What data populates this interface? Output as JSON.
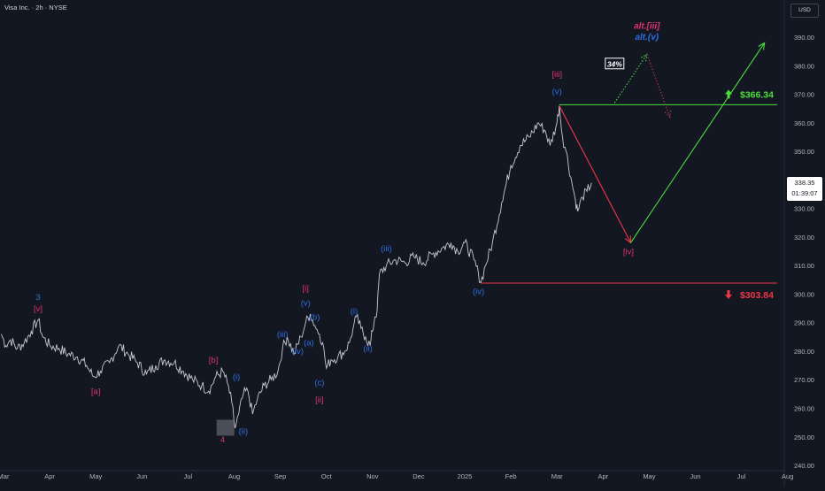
{
  "header": {
    "symbol": "Visa Inc. · 2h · NYSE",
    "currency": "USD"
  },
  "price_tag": {
    "price": "338.35",
    "countdown": "01:39:07"
  },
  "chart_data": {
    "type": "line",
    "title": "Visa Inc. · 2h · NYSE",
    "xlabel": "",
    "ylabel": "",
    "ylim": [
      240,
      400
    ],
    "y_ticks": [
      240,
      250,
      260,
      270,
      280,
      290,
      300,
      310,
      320,
      330,
      340,
      350,
      360,
      370,
      380,
      390
    ],
    "y_tick_labels": [
      "240.00",
      "250.00",
      "260.00",
      "270.00",
      "280.00",
      "290.00",
      "300.00",
      "310.00",
      "320.00",
      "330.00",
      "340.00",
      "350.00",
      "360.00",
      "370.00",
      "380.00",
      "390.00"
    ],
    "x_axis_labels": [
      "Mar",
      "Apr",
      "May",
      "Jun",
      "Jul",
      "Aug",
      "Sep",
      "Oct",
      "Nov",
      "Dec",
      "2025",
      "Feb",
      "Mar",
      "Apr",
      "May",
      "Jun",
      "Jul",
      "Aug"
    ],
    "x_axis_months": [
      0,
      1,
      2,
      3,
      4,
      5,
      6,
      7,
      8,
      9,
      10,
      11,
      12,
      13,
      14,
      15,
      16,
      17
    ],
    "grid": false,
    "price_series": [
      [
        -0.05,
        286
      ],
      [
        0.05,
        282
      ],
      [
        0.15,
        284
      ],
      [
        0.3,
        281
      ],
      [
        0.45,
        283
      ],
      [
        0.6,
        287
      ],
      [
        0.75,
        291
      ],
      [
        0.85,
        285
      ],
      [
        1.0,
        282
      ],
      [
        1.2,
        281
      ],
      [
        1.4,
        279
      ],
      [
        1.6,
        278
      ],
      [
        1.8,
        275
      ],
      [
        1.95,
        271
      ],
      [
        2.1,
        273
      ],
      [
        2.3,
        276
      ],
      [
        2.5,
        282
      ],
      [
        2.7,
        279
      ],
      [
        2.9,
        276
      ],
      [
        3.1,
        272
      ],
      [
        3.3,
        275
      ],
      [
        3.5,
        277
      ],
      [
        3.7,
        276
      ],
      [
        3.9,
        273
      ],
      [
        4.1,
        270
      ],
      [
        4.3,
        268
      ],
      [
        4.45,
        266
      ],
      [
        4.6,
        271
      ],
      [
        4.75,
        273
      ],
      [
        4.85,
        269
      ],
      [
        4.95,
        262
      ],
      [
        5.02,
        253
      ],
      [
        5.1,
        258
      ],
      [
        5.2,
        265
      ],
      [
        5.3,
        266
      ],
      [
        5.4,
        258
      ],
      [
        5.5,
        263
      ],
      [
        5.65,
        268
      ],
      [
        5.8,
        270
      ],
      [
        5.95,
        273
      ],
      [
        6.05,
        281
      ],
      [
        6.15,
        285
      ],
      [
        6.3,
        279
      ],
      [
        6.45,
        285
      ],
      [
        6.55,
        290
      ],
      [
        6.65,
        293
      ],
      [
        6.75,
        289
      ],
      [
        6.85,
        286
      ],
      [
        6.92,
        283
      ],
      [
        7.0,
        274
      ],
      [
        7.1,
        277
      ],
      [
        7.25,
        278
      ],
      [
        7.4,
        280
      ],
      [
        7.5,
        283
      ],
      [
        7.58,
        288
      ],
      [
        7.65,
        292
      ],
      [
        7.75,
        288
      ],
      [
        7.85,
        285
      ],
      [
        7.95,
        282
      ],
      [
        8.0,
        287
      ],
      [
        8.05,
        292
      ],
      [
        8.1,
        294
      ],
      [
        8.15,
        307
      ],
      [
        8.3,
        310
      ],
      [
        8.5,
        312
      ],
      [
        8.7,
        311
      ],
      [
        8.9,
        313
      ],
      [
        9.1,
        311
      ],
      [
        9.3,
        314
      ],
      [
        9.5,
        316
      ],
      [
        9.7,
        318
      ],
      [
        9.85,
        315
      ],
      [
        10.0,
        318
      ],
      [
        10.2,
        312
      ],
      [
        10.3,
        307
      ],
      [
        10.35,
        304
      ],
      [
        10.45,
        310
      ],
      [
        10.6,
        318
      ],
      [
        10.8,
        332
      ],
      [
        11.0,
        345
      ],
      [
        11.2,
        352
      ],
      [
        11.4,
        355
      ],
      [
        11.6,
        360
      ],
      [
        11.75,
        357
      ],
      [
        11.85,
        352
      ],
      [
        12.0,
        360
      ],
      [
        12.05,
        366
      ],
      [
        12.12,
        355
      ],
      [
        12.2,
        350
      ],
      [
        12.3,
        341
      ],
      [
        12.4,
        333
      ],
      [
        12.45,
        329
      ],
      [
        12.55,
        334
      ],
      [
        12.65,
        336
      ],
      [
        12.75,
        339
      ]
    ],
    "levels": [
      {
        "name": "resistance",
        "value": 366.34,
        "label": "$366.34",
        "color": "#4cde3c"
      },
      {
        "name": "support",
        "value": 303.84,
        "label": "$303.84",
        "color": "#f23645"
      }
    ],
    "scenario_arrows": [
      {
        "name": "primary-down-leg",
        "from": [
          12.05,
          366
        ],
        "to": [
          13.6,
          318
        ],
        "color": "#f23645"
      },
      {
        "name": "primary-up-leg",
        "from": [
          13.6,
          318
        ],
        "to": [
          16.5,
          388
        ],
        "color": "#4cde3c"
      },
      {
        "name": "alt-up-leg",
        "from": [
          13.25,
          367
        ],
        "to": [
          13.95,
          384
        ],
        "color": "#4cde3c",
        "dotted": true
      },
      {
        "name": "alt-down-leg",
        "from": [
          13.95,
          384
        ],
        "to": [
          14.45,
          362
        ],
        "color": "#b2384a",
        "dotted": true
      }
    ],
    "annotations": [
      {
        "text": "3",
        "x": 0.75,
        "y": 298,
        "color": "#2f6fe0"
      },
      {
        "text": "[v]",
        "x": 0.75,
        "y": 294,
        "color": "#e0316e"
      },
      {
        "text": "[a]",
        "x": 2.0,
        "y": 265,
        "color": "#e0316e"
      },
      {
        "text": "[b]",
        "x": 4.55,
        "y": 276,
        "color": "#e0316e"
      },
      {
        "text": "(i)",
        "x": 5.05,
        "y": 270,
        "color": "#2f6fe0"
      },
      {
        "text": "4",
        "x": 4.75,
        "y": 248,
        "color": "#e0316e"
      },
      {
        "text": "(ii)",
        "x": 5.2,
        "y": 251,
        "color": "#2f6fe0"
      },
      {
        "text": "(iii)",
        "x": 6.05,
        "y": 285,
        "color": "#2f6fe0"
      },
      {
        "text": "(iv)",
        "x": 6.38,
        "y": 279,
        "color": "#2f6fe0"
      },
      {
        "text": "(v)",
        "x": 6.55,
        "y": 296,
        "color": "#2f6fe0"
      },
      {
        "text": "[i]",
        "x": 6.55,
        "y": 301,
        "color": "#e0316e"
      },
      {
        "text": "(a)",
        "x": 6.62,
        "y": 282,
        "color": "#2f6fe0"
      },
      {
        "text": "(b)",
        "x": 6.75,
        "y": 291,
        "color": "#2f6fe0"
      },
      {
        "text": "(c)",
        "x": 6.85,
        "y": 268,
        "color": "#2f6fe0"
      },
      {
        "text": "[ii]",
        "x": 6.85,
        "y": 262,
        "color": "#e0316e"
      },
      {
        "text": "(i)",
        "x": 7.6,
        "y": 293,
        "color": "#2f6fe0"
      },
      {
        "text": "(ii)",
        "x": 7.9,
        "y": 280,
        "color": "#2f6fe0"
      },
      {
        "text": "(iii)",
        "x": 8.3,
        "y": 315,
        "color": "#2f6fe0"
      },
      {
        "text": "(iv)",
        "x": 10.3,
        "y": 300,
        "color": "#2f6fe0"
      },
      {
        "text": "[iii]",
        "x": 12.0,
        "y": 376,
        "color": "#e0316e"
      },
      {
        "text": "(v)",
        "x": 12.0,
        "y": 370,
        "color": "#2f6fe0"
      },
      {
        "text": "[iv]",
        "x": 13.55,
        "y": 314,
        "color": "#e0316e"
      },
      {
        "text": "alt.[iii]",
        "x": 13.95,
        "y": 393,
        "color": "#e0316e"
      },
      {
        "text": "alt.(v)",
        "x": 13.95,
        "y": 389,
        "color": "#2f6fe0"
      },
      {
        "text": "34%",
        "x": 13.25,
        "y": 380,
        "color": "#ffffff"
      }
    ],
    "colors": {
      "background": "#131722",
      "price_line": "#c7c9cf",
      "axis_text": "#b2b5be",
      "wave_magenta": "#e0316e",
      "wave_blue": "#2f6fe0",
      "level_green": "#4cde3c",
      "level_red": "#f23645"
    }
  }
}
